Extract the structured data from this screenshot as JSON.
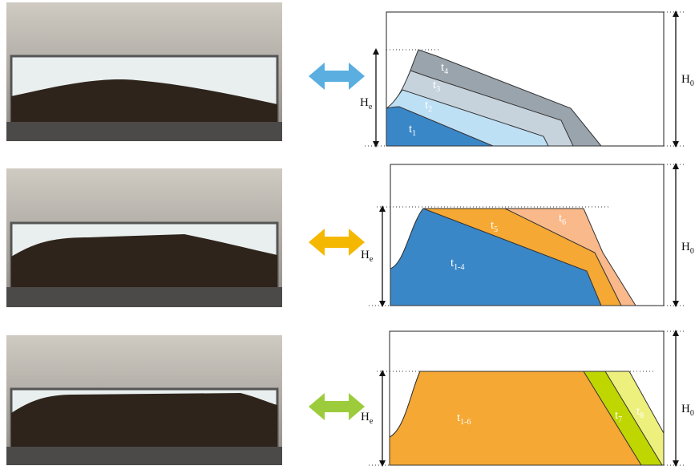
{
  "rows": [
    {
      "layers": [
        {
          "main": "t",
          "sub": "1"
        },
        {
          "main": "t",
          "sub": "2"
        },
        {
          "main": "t",
          "sub": "3"
        },
        {
          "main": "t",
          "sub": "4"
        }
      ],
      "he": {
        "main": "H",
        "sub": "e"
      },
      "h0": {
        "main": "H",
        "sub": "0"
      }
    },
    {
      "layers": [
        {
          "main": "t",
          "sub": "1-4"
        },
        {
          "main": "t",
          "sub": "5"
        },
        {
          "main": "t",
          "sub": "6"
        }
      ],
      "he": {
        "main": "H",
        "sub": "e"
      },
      "h0": {
        "main": "H",
        "sub": "0"
      }
    },
    {
      "layers": [
        {
          "main": "t",
          "sub": "1-6"
        },
        {
          "main": "t",
          "sub": "7"
        },
        {
          "main": "t",
          "sub": "8"
        }
      ],
      "he": {
        "main": "H",
        "sub": "e"
      },
      "h0": {
        "main": "H",
        "sub": "0"
      }
    }
  ]
}
